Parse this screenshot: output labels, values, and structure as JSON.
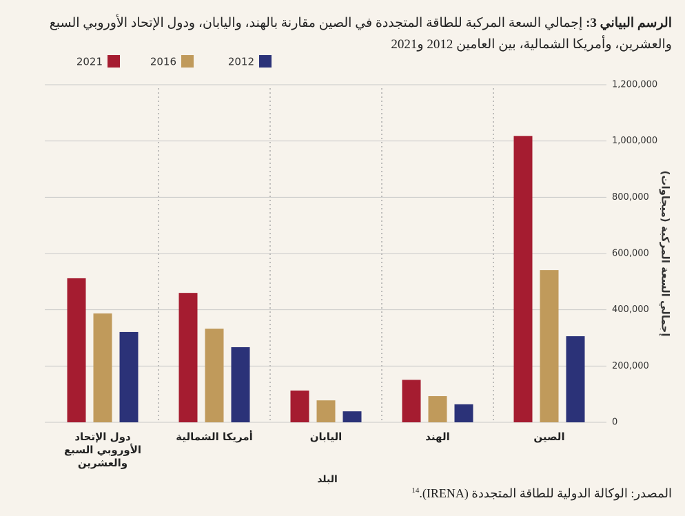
{
  "chart_data": {
    "type": "bar",
    "title_label": "الرسم البياني 3:",
    "title": "إجمالي السعة المركبة للطاقة المتجددة في الصين مقارنة بالهند، واليابان، ودول الإتحاد الأوروبي السبع والعشرين، وأمريكا الشمالية، بين العامين 2012 و2021",
    "y_label": "إجمالي السعة المركبة (ميجاوات)",
    "x_label": "البلد",
    "source": "المصدر: الوكالة الدولية للطاقة المتجددة (IRENA).",
    "source_note": "14",
    "categories": [
      "الصين",
      "الهند",
      "اليابان",
      "أمريكا الشمالية",
      "دول الإتحاد الأوروبي السبع والعشرين"
    ],
    "series": [
      {
        "name": "2021",
        "color": "#a51c30",
        "values": [
          1018000,
          151000,
          113000,
          460000,
          512000
        ]
      },
      {
        "name": "2016",
        "color": "#c09a5b",
        "values": [
          541000,
          93000,
          78000,
          333000,
          387000
        ]
      },
      {
        "name": "2012",
        "color": "#2b3278",
        "values": [
          306000,
          64000,
          39000,
          267000,
          321000
        ]
      }
    ],
    "ylim": [
      0,
      1200000
    ],
    "yticks": [
      0,
      {
        "value": 200000,
        "label": "200,000"
      },
      {
        "value": 400000,
        "label": "400,000"
      },
      {
        "value": 600000,
        "label": "600,000"
      },
      {
        "value": 800000,
        "label": "800,000"
      },
      {
        "value": 1000000,
        "label": "1,000,000"
      },
      {
        "value": 1200000,
        "label": "1,200,000"
      }
    ],
    "grid": true
  }
}
